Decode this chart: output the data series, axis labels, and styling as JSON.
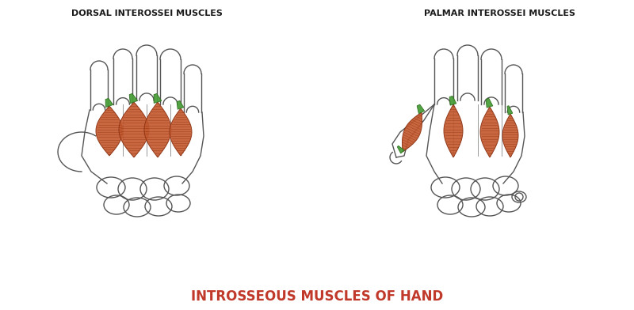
{
  "title": "INTROSSEOUS MUSCLES OF HAND",
  "title_color": "#c0392b",
  "title_fontsize": 12,
  "left_label": "DORSAL INTEROSSEI MUSCLES",
  "right_label": "PALMAR INTEROSSEI MUSCLES",
  "label_fontsize": 8,
  "label_color": "#1a1a1a",
  "bg_color": "#ffffff",
  "muscle_fill": "#c45a30",
  "muscle_edge": "#8b3010",
  "tendon_fill": "#4a9e3a",
  "tendon_edge": "#2d6e1d",
  "line_color": "#555555",
  "line_width": 1.0
}
